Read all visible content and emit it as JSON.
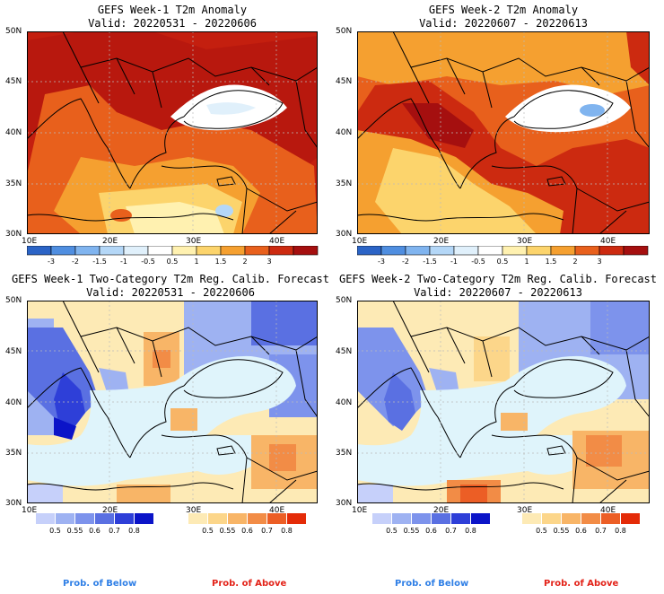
{
  "panels": [
    {
      "id": "p1",
      "title": "GEFS Week-1 T2m Anomaly",
      "valid": "Valid: 20220531 - 20220606"
    },
    {
      "id": "p2",
      "title": "GEFS Week-2 T2m Anomaly",
      "valid": "Valid: 20220607 - 20220613"
    },
    {
      "id": "p3",
      "title": "GEFS Week-1 Two-Category T2m Reg. Calib. Forecast",
      "valid": "Valid: 20220531 - 20220606"
    },
    {
      "id": "p4",
      "title": "GEFS Week-2 Two-Category T2m Reg. Calib. Forecast",
      "valid": "Valid: 20220607 - 20220613"
    }
  ],
  "axes": {
    "lat_labels": [
      "50N",
      "45N",
      "40N",
      "35N",
      "30N"
    ],
    "lon_labels": [
      "10E",
      "20E",
      "30E",
      "40E"
    ]
  },
  "anomaly_colorbar": {
    "labels": [
      "-3",
      "-2",
      "-1.5",
      "-1",
      "-0.5",
      "0.5",
      "1",
      "1.5",
      "2",
      "3"
    ],
    "colors": [
      "#2b64c6",
      "#4f8ee0",
      "#80b4ef",
      "#b4d7f7",
      "#e0f0fb",
      "#ffffff",
      "#fff1b0",
      "#fcd46c",
      "#f5a030",
      "#e8601c",
      "#cc2a10",
      "#a50f0f"
    ]
  },
  "prob_below_colorbar": {
    "labels": [
      "0.5",
      "0.55",
      "0.6",
      "0.7",
      "0.8"
    ],
    "colors": [
      "#c6d0fa",
      "#9eb2f2",
      "#7d93ec",
      "#5a70e2",
      "#2e3fd8",
      "#0b14c8"
    ]
  },
  "prob_above_colorbar": {
    "labels": [
      "0.5",
      "0.55",
      "0.6",
      "0.7",
      "0.8"
    ],
    "colors": [
      "#fdeab5",
      "#fcd68a",
      "#f8b567",
      "#f28c46",
      "#ec5e25",
      "#e42b08"
    ]
  },
  "footer": {
    "below_label": "Prob. of Below",
    "above_label": "Prob. of Above",
    "below_color": "#2f7fe6",
    "above_color": "#e32319"
  }
}
